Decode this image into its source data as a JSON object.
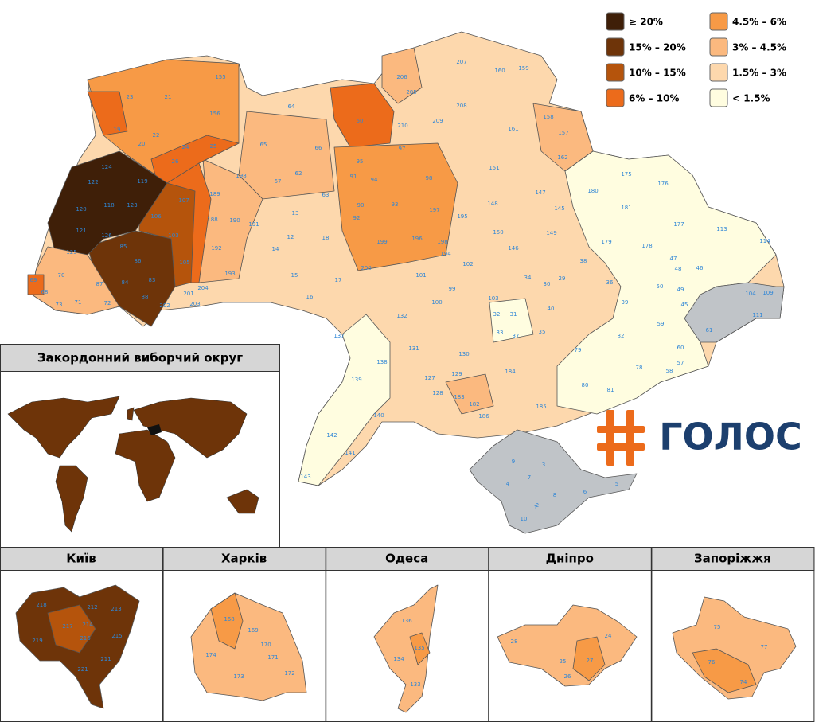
{
  "legend": [
    {
      "label": "≥ 20%",
      "color": "#3f1f08"
    },
    {
      "label": "15% – 20%",
      "color": "#6e3409"
    },
    {
      "label": "10% – 15%",
      "color": "#b5540c"
    },
    {
      "label": "6% – 10%",
      "color": "#ec6b1b"
    },
    {
      "label": "4.5% – 6%",
      "color": "#f79a46"
    },
    {
      "label": "3% – 4.5%",
      "color": "#fbb97f"
    },
    {
      "label": "1.5% – 3%",
      "color": "#fdd8ad"
    },
    {
      "label": "< 1.5%",
      "color": "#fffde0"
    }
  ],
  "logo": "ГОЛОС",
  "abroad": {
    "title": "Закордонний виборчий округ"
  },
  "districts": [
    "23",
    "21",
    "155",
    "156",
    "64",
    "65",
    "66",
    "67",
    "62",
    "63",
    "60",
    "206",
    "205",
    "207",
    "160",
    "159",
    "208",
    "209",
    "210",
    "161",
    "158",
    "157",
    "162",
    "19",
    "20",
    "22",
    "24",
    "25",
    "26",
    "198",
    "189",
    "188",
    "190",
    "191",
    "192",
    "193",
    "13",
    "12",
    "18",
    "14",
    "15",
    "16",
    "17",
    "95",
    "97",
    "91",
    "94",
    "98",
    "90",
    "92",
    "93",
    "197",
    "195",
    "199",
    "196",
    "198",
    "194",
    "200",
    "151",
    "147",
    "148",
    "145",
    "149",
    "150",
    "146",
    "102",
    "101",
    "99",
    "100",
    "103",
    "180",
    "175",
    "176",
    "181",
    "177",
    "179",
    "178",
    "113",
    "114",
    "38",
    "34",
    "30",
    "29",
    "36",
    "47",
    "48",
    "46",
    "39",
    "50",
    "49",
    "45",
    "61",
    "104",
    "109",
    "111",
    "59",
    "60",
    "57",
    "58",
    "40",
    "31",
    "32",
    "33",
    "35",
    "37",
    "79",
    "82",
    "78",
    "80",
    "81",
    "132",
    "137",
    "138",
    "131",
    "130",
    "129",
    "127",
    "128",
    "183",
    "182",
    "184",
    "185",
    "186",
    "139",
    "140",
    "142",
    "141",
    "143",
    "122",
    "119",
    "124",
    "120",
    "118",
    "123",
    "121",
    "126",
    "125",
    "106",
    "107",
    "103",
    "105",
    "85",
    "86",
    "84",
    "87",
    "83",
    "88",
    "70",
    "69",
    "68",
    "71",
    "73",
    "72",
    "202",
    "203",
    "204",
    "201",
    "9",
    "3",
    "4",
    "7",
    "8",
    "6",
    "5",
    "1",
    "10",
    "2"
  ],
  "insets": [
    {
      "title": "Київ",
      "districts": [
        "218",
        "212",
        "213",
        "215",
        "211",
        "221",
        "219",
        "217",
        "214",
        "216"
      ]
    },
    {
      "title": "Харків",
      "districts": [
        "168",
        "169",
        "170",
        "174",
        "171",
        "173",
        "172"
      ]
    },
    {
      "title": "Одеса",
      "districts": [
        "136",
        "135",
        "134",
        "133"
      ]
    },
    {
      "title": "Дніпро",
      "districts": [
        "28",
        "24",
        "25",
        "27",
        "26"
      ]
    },
    {
      "title": "Запоріжжя",
      "districts": [
        "75",
        "77",
        "76",
        "74"
      ]
    }
  ]
}
